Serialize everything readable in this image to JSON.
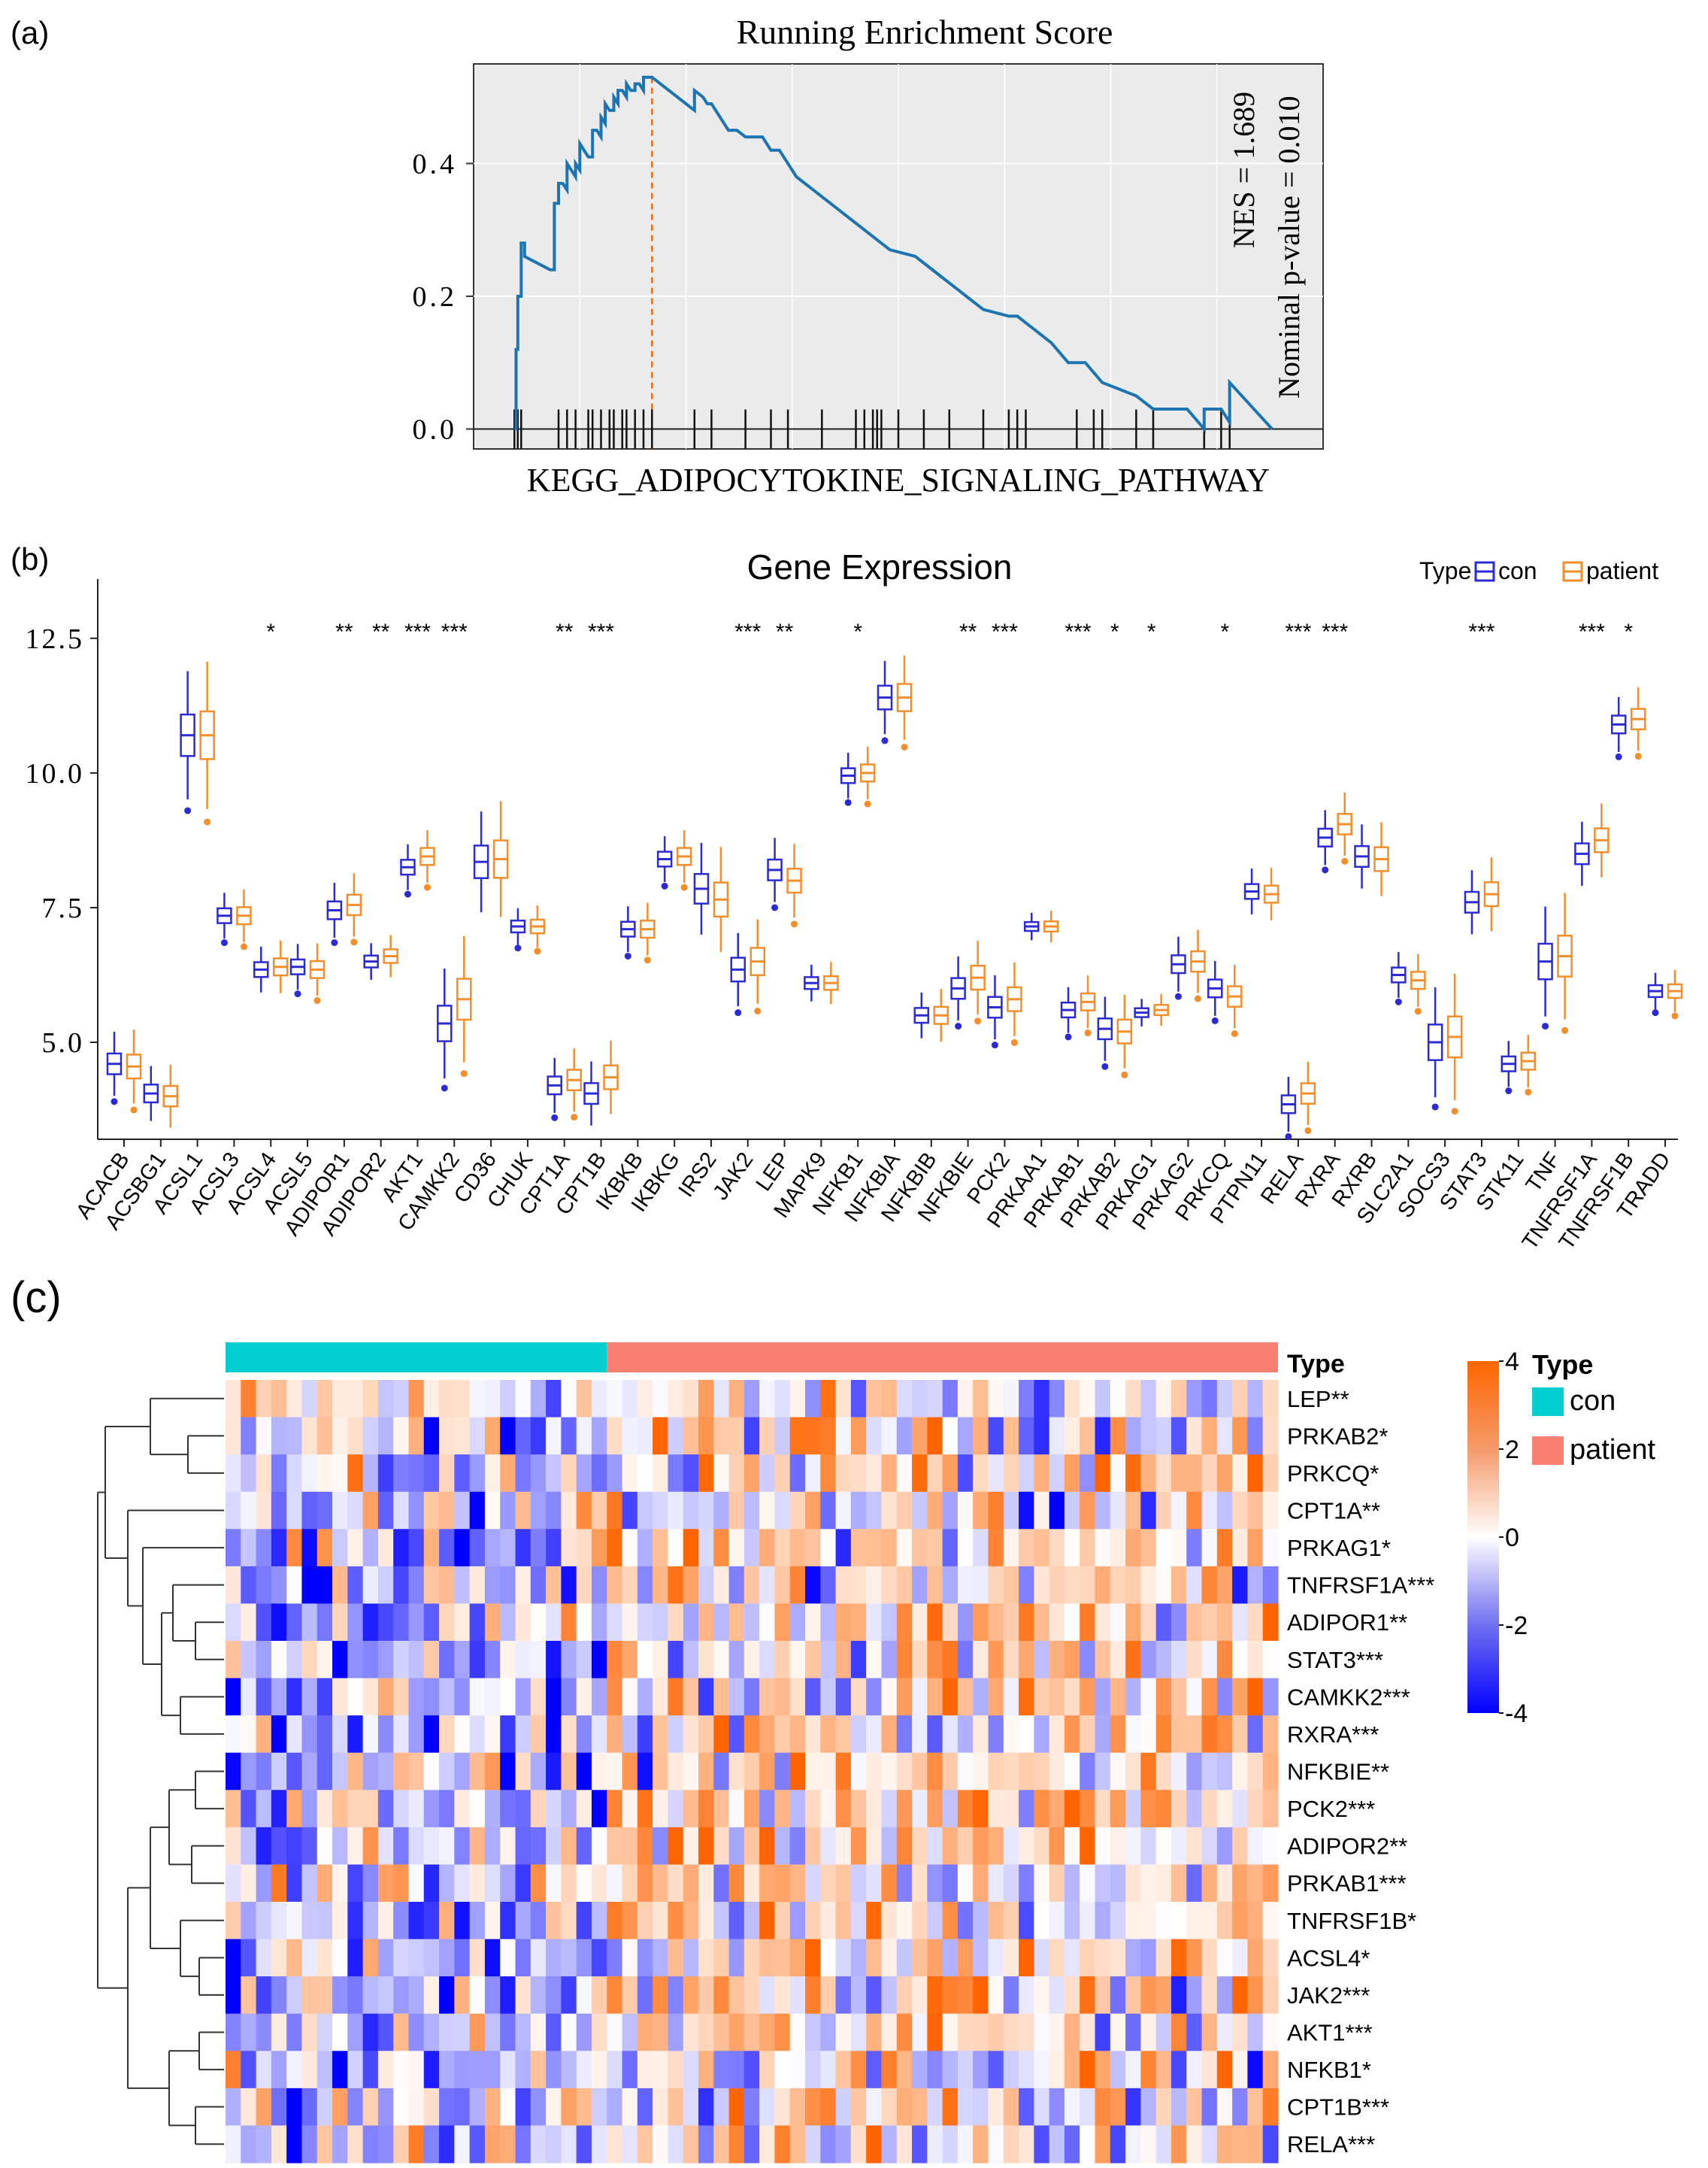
{
  "panels": {
    "a": "(a)",
    "b": "(b)",
    "c": "(c)"
  },
  "chart_data": [
    {
      "type": "line",
      "title": "Running Enrichment Score",
      "xlabel": "KEGG_ADIPOCYTOKINE_SIGNALING_PATHWAY",
      "ylabel": "",
      "xlim": [
        0,
        1
      ],
      "ylim": [
        -0.03,
        0.55
      ],
      "yticks": [
        "0.0",
        "0.2",
        "0.4"
      ],
      "ytick_values": [
        0.0,
        0.2,
        0.4
      ],
      "annotation": {
        "nes": "NES = 1.689",
        "pvalue": "Nominal p-value = 0.010"
      },
      "peak_x": 0.21,
      "series": [
        {
          "name": "Running Enrichment Score",
          "x": [
            0.048,
            0.05,
            0.05,
            0.052,
            0.052,
            0.056,
            0.056,
            0.06,
            0.06,
            0.09,
            0.095,
            0.095,
            0.1,
            0.1,
            0.105,
            0.11,
            0.11,
            0.12,
            0.12,
            0.125,
            0.125,
            0.135,
            0.14,
            0.14,
            0.145,
            0.15,
            0.15,
            0.155,
            0.155,
            0.16,
            0.165,
            0.165,
            0.17,
            0.17,
            0.175,
            0.18,
            0.18,
            0.185,
            0.19,
            0.19,
            0.195,
            0.2,
            0.2,
            0.205,
            0.21,
            0.25,
            0.26,
            0.26,
            0.27,
            0.275,
            0.28,
            0.3,
            0.31,
            0.32,
            0.34,
            0.35,
            0.36,
            0.38,
            0.4,
            0.41,
            0.43,
            0.46,
            0.49,
            0.52,
            0.55,
            0.56,
            0.57,
            0.58,
            0.6,
            0.63,
            0.64,
            0.65,
            0.66,
            0.68,
            0.7,
            0.72,
            0.74,
            0.78,
            0.8,
            0.84,
            0.86,
            0.86,
            0.88,
            0.89,
            0.89,
            0.94
          ],
          "values": [
            0.0,
            0.0,
            0.12,
            0.12,
            0.2,
            0.2,
            0.28,
            0.28,
            0.26,
            0.24,
            0.24,
            0.34,
            0.34,
            0.37,
            0.37,
            0.36,
            0.4,
            0.38,
            0.4,
            0.39,
            0.43,
            0.41,
            0.41,
            0.45,
            0.45,
            0.44,
            0.47,
            0.46,
            0.49,
            0.48,
            0.48,
            0.5,
            0.49,
            0.51,
            0.51,
            0.5,
            0.52,
            0.51,
            0.51,
            0.52,
            0.52,
            0.51,
            0.53,
            0.53,
            0.53,
            0.49,
            0.48,
            0.51,
            0.5,
            0.49,
            0.49,
            0.45,
            0.45,
            0.44,
            0.44,
            0.42,
            0.42,
            0.38,
            0.36,
            0.35,
            0.33,
            0.3,
            0.27,
            0.26,
            0.23,
            0.22,
            0.21,
            0.2,
            0.18,
            0.17,
            0.17,
            0.16,
            0.15,
            0.13,
            0.1,
            0.1,
            0.07,
            0.05,
            0.03,
            0.03,
            0.0,
            0.03,
            0.03,
            0.01,
            0.07,
            0.0
          ]
        }
      ],
      "hit_positions": [
        0.048,
        0.052,
        0.056,
        0.1,
        0.11,
        0.12,
        0.135,
        0.14,
        0.15,
        0.16,
        0.165,
        0.175,
        0.18,
        0.19,
        0.2,
        0.21,
        0.26,
        0.28,
        0.32,
        0.35,
        0.37,
        0.41,
        0.45,
        0.46,
        0.47,
        0.475,
        0.48,
        0.5,
        0.53,
        0.56,
        0.6,
        0.63,
        0.64,
        0.65,
        0.71,
        0.73,
        0.74,
        0.78,
        0.8,
        0.86,
        0.88,
        0.89
      ]
    },
    {
      "type": "box",
      "title": "Gene Expression",
      "xlabel": "",
      "ylabel": "",
      "ylim": [
        3.2,
        13.6
      ],
      "yticks": [
        "5.0",
        "7.5",
        "10.0",
        "12.5"
      ],
      "ytick_values": [
        5.0,
        7.5,
        10.0,
        12.5
      ],
      "legend": {
        "title": "Type",
        "entries": [
          "con",
          "patient"
        ],
        "placement": "top-right"
      },
      "categories": [
        "ACACB",
        "ACSBG1",
        "ACSL1",
        "ACSL3",
        "ACSL4",
        "ACSL5",
        "ADIPOR1",
        "ADIPOR2",
        "AKT1",
        "CAMKK2",
        "CD36",
        "CHUK",
        "CPT1A",
        "CPT1B",
        "IKBKB",
        "IKBKG",
        "IRS2",
        "JAK2",
        "LEP",
        "MAPK9",
        "NFKB1",
        "NFKBIA",
        "NFKBIB",
        "NFKBIE",
        "PCK2",
        "PRKAA1",
        "PRKAB1",
        "PRKAB2",
        "PRKAG1",
        "PRKAG2",
        "PRKCQ",
        "PTPN11",
        "RELA",
        "RXRA",
        "RXRB",
        "SLC2A1",
        "SOCS3",
        "STAT3",
        "STK11",
        "TNF",
        "TNFRSF1A",
        "TNFRSF1B",
        "TRADD"
      ],
      "significance": [
        "",
        "",
        "",
        "",
        "*",
        "",
        "**",
        "**",
        "***",
        "***",
        "",
        "",
        "**",
        "***",
        "",
        "",
        "",
        "***",
        "**",
        "",
        "*",
        "",
        "",
        "**",
        "***",
        "",
        "***",
        "*",
        "*",
        "",
        "*",
        "",
        "***",
        "***",
        "",
        "",
        "",
        "***",
        "",
        "",
        "***",
        "*",
        ""
      ],
      "series": [
        {
          "name": "con",
          "color": "#2b2bd1",
          "medians": [
            4.6,
            4.05,
            10.7,
            7.35,
            6.35,
            6.4,
            7.45,
            6.5,
            8.25,
            5.35,
            8.35,
            7.15,
            4.2,
            4.05,
            7.1,
            8.4,
            7.85,
            6.35,
            8.2,
            6.1,
            9.95,
            11.4,
            5.5,
            6.0,
            5.65,
            7.15,
            5.6,
            5.25,
            5.55,
            6.45,
            6.0,
            7.8,
            3.85,
            8.8,
            8.45,
            6.25,
            5.0,
            7.6,
            4.6,
            6.5,
            8.5,
            10.9,
            5.95
          ]
        },
        {
          "name": "patient",
          "color": "#f28e2b",
          "medians": [
            4.55,
            4.0,
            10.7,
            7.35,
            6.4,
            6.35,
            7.55,
            6.6,
            8.45,
            5.8,
            8.4,
            7.15,
            4.3,
            4.35,
            7.1,
            8.45,
            7.65,
            6.5,
            8.0,
            6.1,
            10.0,
            11.4,
            5.5,
            6.2,
            5.8,
            7.15,
            5.75,
            5.2,
            5.6,
            6.5,
            5.85,
            7.75,
            4.05,
            9.05,
            8.4,
            6.15,
            5.1,
            7.75,
            4.65,
            6.6,
            8.75,
            11.0,
            5.95
          ]
        }
      ]
    },
    {
      "type": "heatmap",
      "title": "",
      "annotation_bar_label": "Type",
      "groups": [
        {
          "name": "con",
          "color": "#00ced1",
          "count": 25
        },
        {
          "name": "patient",
          "color": "#fa8072",
          "count": 44
        }
      ],
      "rows": [
        "LEP**",
        "PRKAB2*",
        "PRKCQ*",
        "CPT1A**",
        "PRKAG1*",
        "TNFRSF1A***",
        "ADIPOR1**",
        "STAT3***",
        "CAMKK2***",
        "RXRA***",
        "NFKBIE**",
        "PCK2***",
        "ADIPOR2**",
        "PRKAB1***",
        "TNFRSF1B*",
        "ACSL4*",
        "JAK2***",
        "AKT1***",
        "NFKB1*",
        "CPT1B***",
        "RELA***"
      ],
      "colorbar": {
        "ticks": [
          "4",
          "2",
          "0",
          "-2",
          "-4"
        ],
        "values": [
          4,
          2,
          0,
          -2,
          -4
        ],
        "colors": [
          "#ff6600",
          "#ffffff",
          "#0000ff"
        ]
      },
      "legend": {
        "title": "Type",
        "entries": [
          "con",
          "patient"
        ]
      }
    }
  ]
}
